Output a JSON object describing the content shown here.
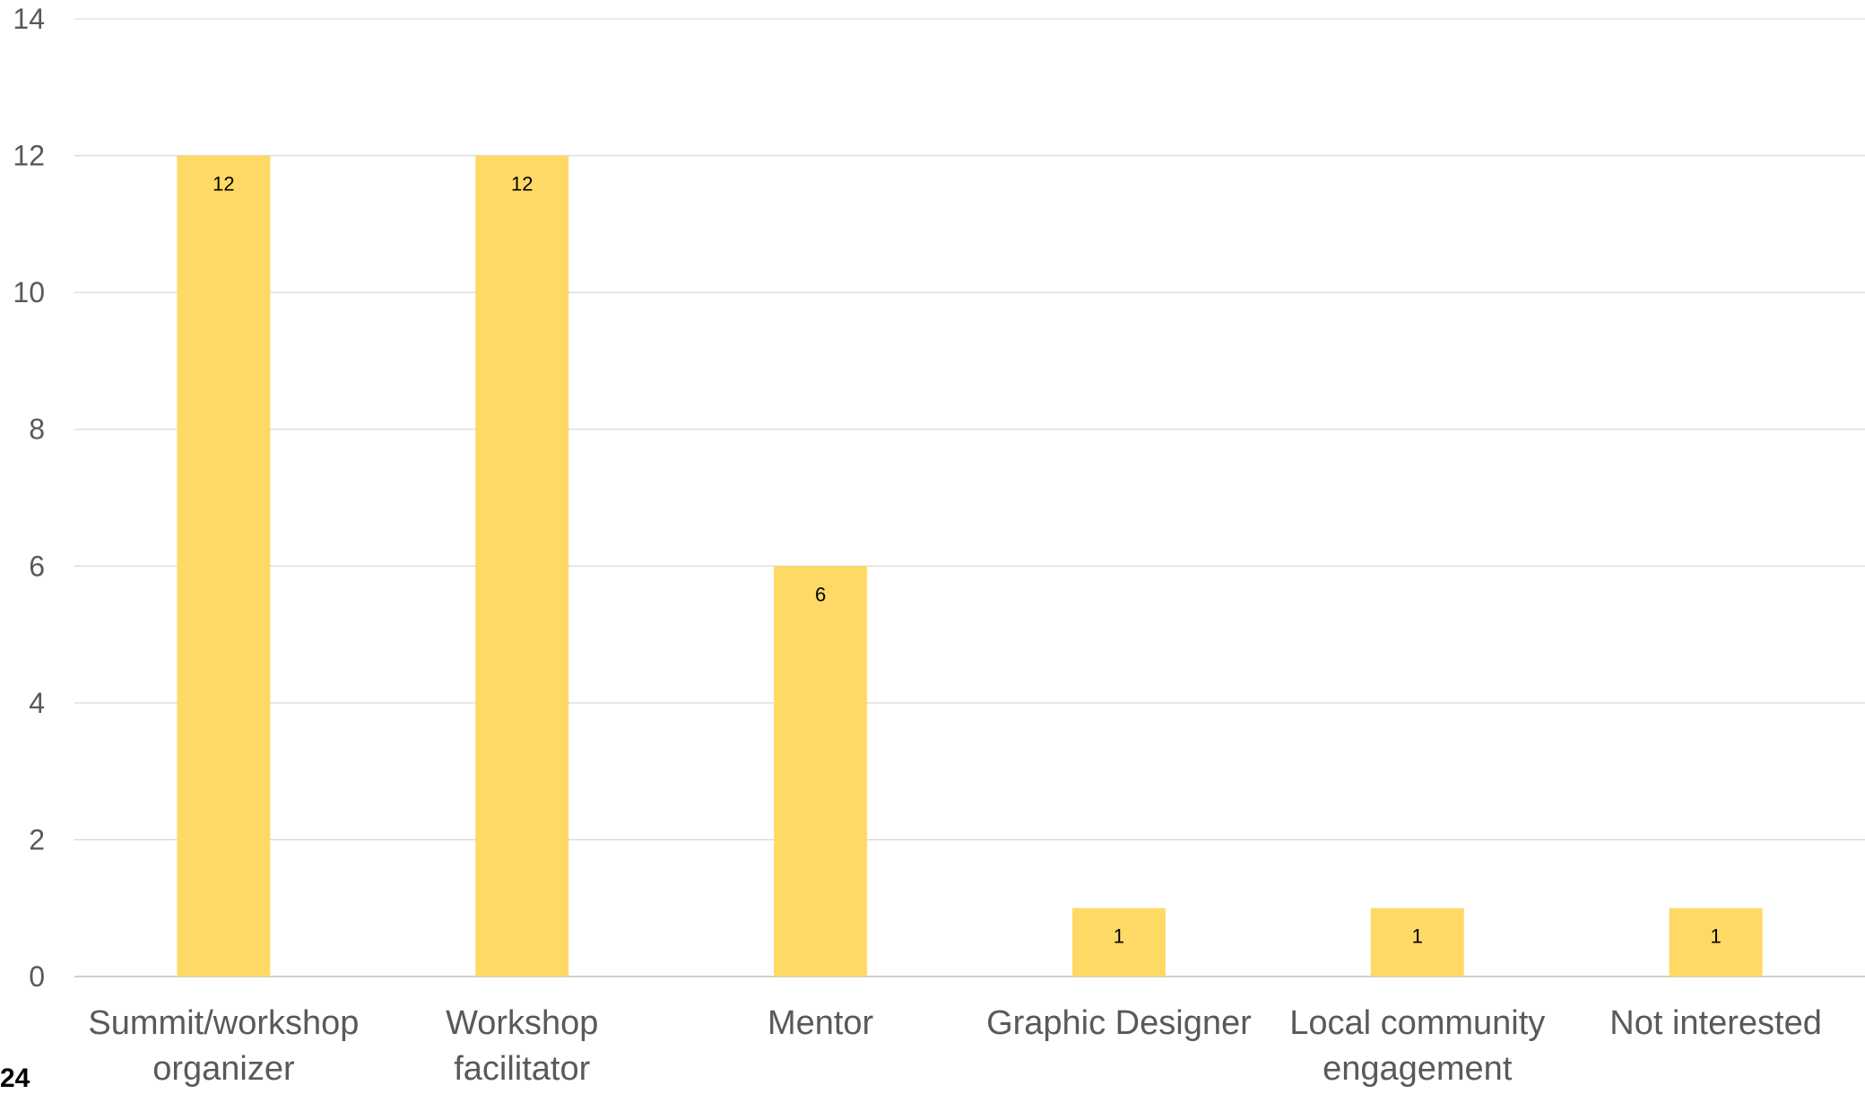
{
  "chart_data": {
    "type": "bar",
    "categories": [
      [
        "Summit/workshop",
        "organizer"
      ],
      [
        "Workshop",
        "facilitator"
      ],
      [
        "Mentor"
      ],
      [
        "Graphic Designer"
      ],
      [
        "Local community",
        "engagement"
      ],
      [
        "Not interested"
      ]
    ],
    "values": [
      12,
      12,
      6,
      1,
      1,
      1
    ],
    "data_labels": [
      "12",
      "12",
      "6",
      "1",
      "1",
      "1"
    ],
    "yticks": [
      "0",
      "2",
      "4",
      "6",
      "8",
      "10",
      "12",
      "14"
    ],
    "ylim": [
      0,
      14
    ],
    "grid": true,
    "legend": "none",
    "bar_color": "#FFD966"
  },
  "corner_text": "24"
}
